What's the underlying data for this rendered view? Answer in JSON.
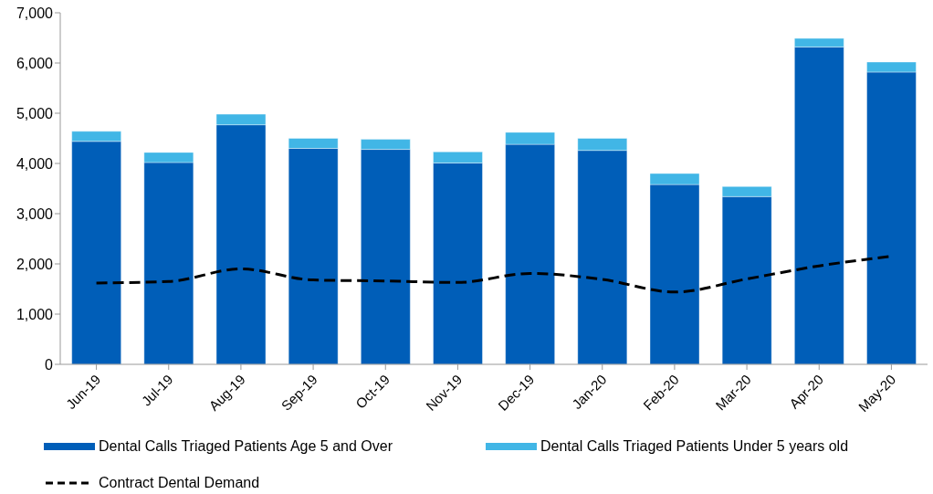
{
  "chart_data": {
    "type": "bar",
    "stacked": true,
    "categories": [
      "Jun-19",
      "Jul-19",
      "Aug-19",
      "Sep-19",
      "Oct-19",
      "Nov-19",
      "Dec-19",
      "Jan-20",
      "Feb-20",
      "Mar-20",
      "Apr-20",
      "May-20"
    ],
    "series": [
      {
        "name": "Dental Calls Triaged Patients Age 5 and Over",
        "color": "#005eb8",
        "values": [
          4440,
          4020,
          4770,
          4300,
          4280,
          4010,
          4380,
          4260,
          3580,
          3340,
          6320,
          5820
        ]
      },
      {
        "name": "Dental Calls Triaged Patients Under 5 years old",
        "color": "#41b6e6",
        "values": [
          200,
          200,
          210,
          200,
          200,
          220,
          240,
          240,
          220,
          200,
          170,
          200
        ]
      },
      {
        "name": "Contract Dental Demand",
        "type": "line",
        "color": "#000000",
        "line_style": "dashed",
        "values": [
          1620,
          1650,
          1900,
          1680,
          1660,
          1630,
          1810,
          1690,
          1440,
          1700,
          1960,
          2150
        ]
      }
    ],
    "ylim": [
      0,
      7000
    ],
    "yticks": [
      {
        "value": 0,
        "label": "0"
      },
      {
        "value": 1000,
        "label": "1,000"
      },
      {
        "value": 2000,
        "label": "2,000"
      },
      {
        "value": 3000,
        "label": "3,000"
      },
      {
        "value": 4000,
        "label": "4,000"
      },
      {
        "value": 5000,
        "label": "5,000"
      },
      {
        "value": 6000,
        "label": "6,000"
      },
      {
        "value": 7000,
        "label": "7,000"
      }
    ],
    "grid": false,
    "legend": "bottom",
    "marker": "none"
  }
}
